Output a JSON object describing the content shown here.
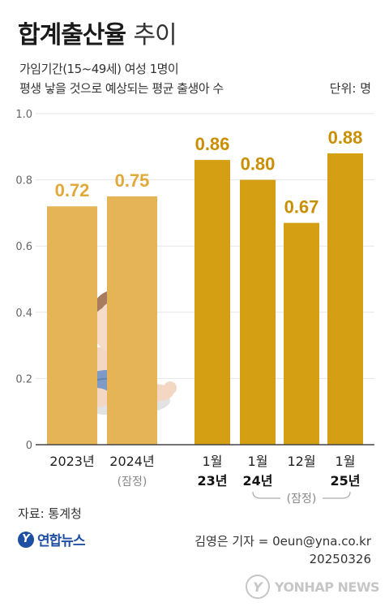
{
  "header": {
    "title_bold": "합계출산율",
    "title_light": "추이",
    "subtitle_line1": "가임기간(15~49세) 여성 1명이",
    "subtitle_line2": "평생 낳을 것으로 예상되는 평균 출생아 수",
    "unit": "단위: 명"
  },
  "chart_data": {
    "type": "bar",
    "ylim": [
      0,
      1.0
    ],
    "yticks": [
      "0",
      "0.2",
      "0.4",
      "0.6",
      "0.8",
      "1.0"
    ],
    "grid": true,
    "bars": [
      {
        "label1": "2023년",
        "label2": "",
        "value": 0.72,
        "value_label": "0.72",
        "group": "annual"
      },
      {
        "label1": "2024년",
        "label2": "(잠정)",
        "value": 0.75,
        "value_label": "0.75",
        "group": "annual"
      },
      {
        "label1": "1월",
        "label2": "23년",
        "value": 0.86,
        "value_label": "0.86",
        "group": "monthly"
      },
      {
        "label1": "1월",
        "label2": "24년",
        "value": 0.8,
        "value_label": "0.80",
        "group": "monthly"
      },
      {
        "label1": "12월",
        "label2": "",
        "value": 0.67,
        "value_label": "0.67",
        "group": "monthly"
      },
      {
        "label1": "1월",
        "label2": "25년",
        "value": 0.88,
        "value_label": "0.88",
        "group": "monthly"
      }
    ],
    "provisional_note": "(잠정)",
    "colors": {
      "annual_bar": "#e4b456",
      "annual_label": "#e0a93a",
      "monthly_bar": "#d59f13",
      "monthly_label": "#c98f00",
      "grid": "#e6e6e6",
      "axis": "#444444"
    }
  },
  "footer": {
    "source": "자료: 통계청",
    "logo_mark": "Y",
    "logo_text": "연합뉴스",
    "reporter": "김영은 기자 = 0eun@yna.co.kr",
    "date": "20250326",
    "watermark_text": "YONHAP NEWS"
  }
}
